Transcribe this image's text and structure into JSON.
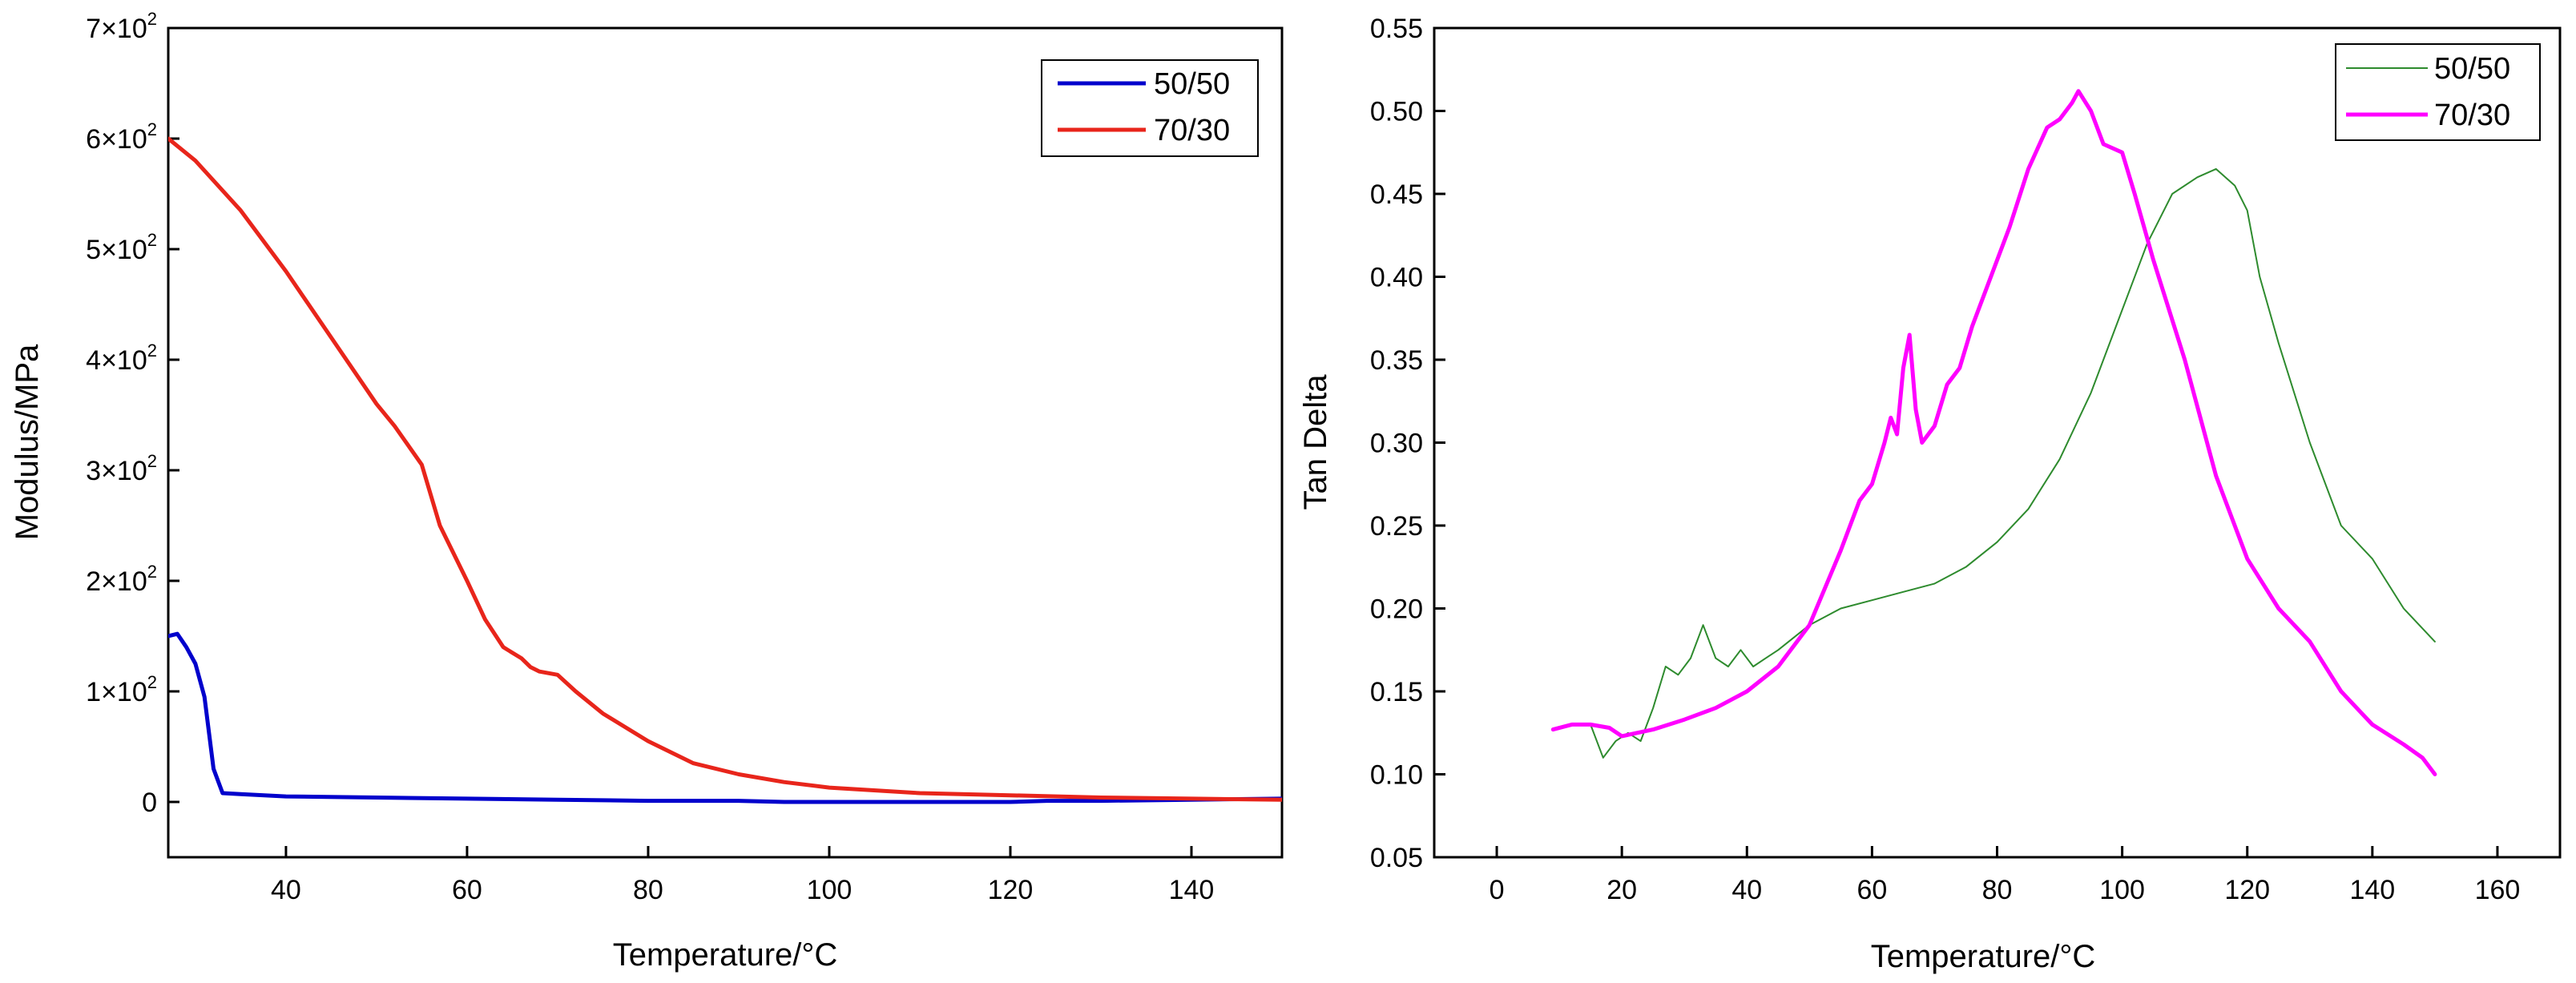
{
  "chart_data": [
    {
      "type": "line",
      "xlabel": "Temperature/°C",
      "ylabel": "Modulus/MPa",
      "xlim": [
        27,
        150
      ],
      "ylim": [
        -50,
        700
      ],
      "xticks": [
        40,
        60,
        80,
        100,
        120,
        140
      ],
      "xtick_labels": [
        "40",
        "60",
        "80",
        "100",
        "120",
        "140"
      ],
      "yticks": [
        0,
        100,
        200,
        300,
        400,
        500,
        600,
        700
      ],
      "ytick_labels": [
        {
          "mantissa": "0",
          "exponent": ""
        },
        {
          "mantissa": "1×10",
          "exponent": "2"
        },
        {
          "mantissa": "2×10",
          "exponent": "2"
        },
        {
          "mantissa": "3×10",
          "exponent": "2"
        },
        {
          "mantissa": "4×10",
          "exponent": "2"
        },
        {
          "mantissa": "5×10",
          "exponent": "2"
        },
        {
          "mantissa": "6×10",
          "exponent": "2"
        },
        {
          "mantissa": "7×10",
          "exponent": "2"
        }
      ],
      "legend_position": "top-right",
      "series": [
        {
          "name": "50/50",
          "color": "#0000cc",
          "x": [
            27,
            28,
            29,
            30,
            31,
            32,
            33,
            35,
            40,
            50,
            60,
            70,
            80,
            90,
            95,
            100,
            110,
            120,
            124,
            130,
            140,
            150
          ],
          "y": [
            150,
            152,
            140,
            125,
            95,
            30,
            8,
            7,
            5,
            4,
            3,
            2,
            1,
            1,
            0,
            0,
            0,
            0,
            1,
            1,
            2,
            3
          ]
        },
        {
          "name": "70/30",
          "color": "#e8251b",
          "x": [
            27,
            30,
            35,
            40,
            45,
            50,
            52,
            55,
            57,
            60,
            62,
            64,
            66,
            67,
            68,
            70,
            72,
            75,
            80,
            85,
            90,
            95,
            100,
            110,
            120,
            130,
            140,
            150
          ],
          "y": [
            600,
            580,
            535,
            480,
            420,
            360,
            340,
            305,
            250,
            200,
            165,
            140,
            130,
            122,
            118,
            115,
            100,
            80,
            55,
            35,
            25,
            18,
            13,
            8,
            6,
            4,
            3,
            2
          ]
        }
      ]
    },
    {
      "type": "line",
      "xlabel": "Temperature/°C",
      "ylabel": "Tan Delta",
      "xlim": [
        -10,
        170
      ],
      "ylim": [
        0.05,
        0.55
      ],
      "xticks": [
        0,
        20,
        40,
        60,
        80,
        100,
        120,
        140,
        160
      ],
      "xtick_labels": [
        "0",
        "20",
        "40",
        "60",
        "80",
        "100",
        "120",
        "140",
        "160"
      ],
      "yticks": [
        0.05,
        0.1,
        0.15,
        0.2,
        0.25,
        0.3,
        0.35,
        0.4,
        0.45,
        0.5,
        0.55
      ],
      "ytick_labels": [
        "0.05",
        "0.10",
        "0.15",
        "0.20",
        "0.25",
        "0.30",
        "0.35",
        "0.40",
        "0.45",
        "0.50",
        "0.55"
      ],
      "legend_position": "top-right",
      "series": [
        {
          "name": "50/50",
          "color": "#2e8b2e",
          "x": [
            15,
            17,
            19,
            21,
            23,
            25,
            27,
            29,
            31,
            33,
            35,
            37,
            39,
            41,
            43,
            45,
            50,
            55,
            60,
            65,
            70,
            75,
            80,
            85,
            90,
            95,
            100,
            104,
            108,
            112,
            115,
            118,
            120,
            122,
            125,
            130,
            135,
            140,
            145,
            150
          ],
          "y": [
            0.13,
            0.11,
            0.12,
            0.125,
            0.12,
            0.14,
            0.165,
            0.16,
            0.17,
            0.19,
            0.17,
            0.165,
            0.175,
            0.165,
            0.17,
            0.175,
            0.19,
            0.2,
            0.205,
            0.21,
            0.215,
            0.225,
            0.24,
            0.26,
            0.29,
            0.33,
            0.38,
            0.42,
            0.45,
            0.46,
            0.465,
            0.455,
            0.44,
            0.4,
            0.36,
            0.3,
            0.25,
            0.23,
            0.2,
            0.18
          ]
        },
        {
          "name": "70/30",
          "color": "#ff00ff",
          "x": [
            9,
            12,
            15,
            18,
            20,
            25,
            30,
            35,
            40,
            45,
            50,
            55,
            58,
            60,
            62,
            63,
            64,
            65,
            66,
            67,
            68,
            70,
            72,
            74,
            76,
            78,
            80,
            82,
            85,
            88,
            90,
            92,
            93,
            95,
            97,
            100,
            102,
            105,
            110,
            115,
            120,
            125,
            130,
            135,
            140,
            145,
            148,
            150
          ],
          "y": [
            0.127,
            0.13,
            0.13,
            0.128,
            0.123,
            0.127,
            0.133,
            0.14,
            0.15,
            0.165,
            0.19,
            0.235,
            0.265,
            0.275,
            0.3,
            0.315,
            0.305,
            0.345,
            0.365,
            0.32,
            0.3,
            0.31,
            0.335,
            0.345,
            0.37,
            0.39,
            0.41,
            0.43,
            0.465,
            0.49,
            0.495,
            0.505,
            0.512,
            0.5,
            0.48,
            0.475,
            0.45,
            0.41,
            0.35,
            0.28,
            0.23,
            0.2,
            0.18,
            0.15,
            0.13,
            0.118,
            0.11,
            0.1
          ]
        }
      ]
    }
  ]
}
